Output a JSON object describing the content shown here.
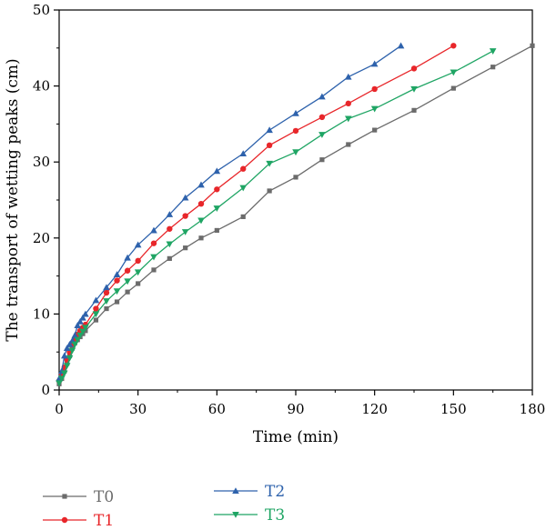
{
  "chart_data": {
    "type": "line",
    "title": "",
    "xlabel": "Time (min)",
    "ylabel": "The transport of wetting peaks (cm)",
    "xlim": [
      0,
      180
    ],
    "ylim": [
      0,
      50
    ],
    "xticks": [
      0,
      30,
      60,
      90,
      120,
      150,
      180
    ],
    "yticks": [
      0,
      10,
      20,
      30,
      40,
      50
    ],
    "grid": false,
    "legend_placement": "bottom",
    "series": [
      {
        "name": "T0",
        "color": "#6b6b6b",
        "marker": "square",
        "points": [
          [
            0,
            0.8
          ],
          [
            1,
            1.5
          ],
          [
            2,
            2.5
          ],
          [
            3,
            3.5
          ],
          [
            4,
            4.5
          ],
          [
            5,
            5.5
          ],
          [
            6,
            6.2
          ],
          [
            7,
            6.6
          ],
          [
            8,
            7.0
          ],
          [
            9,
            7.4
          ],
          [
            10,
            7.8
          ],
          [
            14,
            9.2
          ],
          [
            18,
            10.7
          ],
          [
            22,
            11.6
          ],
          [
            26,
            12.9
          ],
          [
            30,
            14.0
          ],
          [
            36,
            15.8
          ],
          [
            42,
            17.3
          ],
          [
            48,
            18.7
          ],
          [
            54,
            20.0
          ],
          [
            60,
            21.0
          ],
          [
            70,
            22.8
          ],
          [
            80,
            26.2
          ],
          [
            90,
            28.0
          ],
          [
            100,
            30.3
          ],
          [
            110,
            32.3
          ],
          [
            120,
            34.2
          ],
          [
            135,
            36.8
          ],
          [
            150,
            39.7
          ],
          [
            165,
            42.5
          ],
          [
            180,
            45.3
          ]
        ]
      },
      {
        "name": "T1",
        "color": "#e8262a",
        "marker": "circle",
        "points": [
          [
            0,
            1.2
          ],
          [
            1,
            2.0
          ],
          [
            2,
            3.0
          ],
          [
            3,
            4.0
          ],
          [
            4,
            5.0
          ],
          [
            5,
            6.0
          ],
          [
            6,
            6.8
          ],
          [
            7,
            7.3
          ],
          [
            8,
            7.8
          ],
          [
            9,
            8.2
          ],
          [
            10,
            8.6
          ],
          [
            14,
            10.7
          ],
          [
            18,
            12.8
          ],
          [
            22,
            14.4
          ],
          [
            26,
            15.7
          ],
          [
            30,
            17.0
          ],
          [
            36,
            19.3
          ],
          [
            42,
            21.2
          ],
          [
            48,
            22.9
          ],
          [
            54,
            24.5
          ],
          [
            60,
            26.4
          ],
          [
            70,
            29.1
          ],
          [
            80,
            32.2
          ],
          [
            90,
            34.1
          ],
          [
            100,
            35.9
          ],
          [
            110,
            37.7
          ],
          [
            120,
            39.6
          ],
          [
            135,
            42.3
          ],
          [
            150,
            45.3
          ]
        ]
      },
      {
        "name": "T2",
        "color": "#2e62ac",
        "marker": "triangle-up",
        "points": [
          [
            0,
            1.5
          ],
          [
            1,
            2.5
          ],
          [
            2,
            4.5
          ],
          [
            3,
            5.5
          ],
          [
            4,
            6.0
          ],
          [
            5,
            6.5
          ],
          [
            6,
            7.2
          ],
          [
            7,
            8.5
          ],
          [
            8,
            9.0
          ],
          [
            9,
            9.5
          ],
          [
            10,
            10.0
          ],
          [
            14,
            11.8
          ],
          [
            18,
            13.5
          ],
          [
            22,
            15.2
          ],
          [
            26,
            17.4
          ],
          [
            30,
            19.1
          ],
          [
            36,
            21.0
          ],
          [
            42,
            23.1
          ],
          [
            48,
            25.3
          ],
          [
            54,
            27.0
          ],
          [
            60,
            28.8
          ],
          [
            70,
            31.1
          ],
          [
            80,
            34.2
          ],
          [
            90,
            36.4
          ],
          [
            100,
            38.6
          ],
          [
            110,
            41.2
          ],
          [
            120,
            42.9
          ],
          [
            130,
            45.3
          ]
        ]
      },
      {
        "name": "T3",
        "color": "#1fa564",
        "marker": "triangle-down",
        "points": [
          [
            0,
            0.9
          ],
          [
            1,
            1.5
          ],
          [
            2,
            2.2
          ],
          [
            3,
            3.2
          ],
          [
            4,
            4.2
          ],
          [
            5,
            5.2
          ],
          [
            6,
            6.0
          ],
          [
            7,
            6.6
          ],
          [
            8,
            7.2
          ],
          [
            9,
            7.7
          ],
          [
            10,
            8.2
          ],
          [
            14,
            10.0
          ],
          [
            18,
            11.7
          ],
          [
            22,
            13.0
          ],
          [
            26,
            14.3
          ],
          [
            30,
            15.5
          ],
          [
            36,
            17.5
          ],
          [
            42,
            19.2
          ],
          [
            48,
            20.8
          ],
          [
            54,
            22.3
          ],
          [
            60,
            23.9
          ],
          [
            70,
            26.6
          ],
          [
            80,
            29.8
          ],
          [
            90,
            31.3
          ],
          [
            100,
            33.6
          ],
          [
            110,
            35.7
          ],
          [
            120,
            37.0
          ],
          [
            135,
            39.6
          ],
          [
            150,
            41.8
          ],
          [
            165,
            44.6
          ]
        ]
      }
    ]
  }
}
